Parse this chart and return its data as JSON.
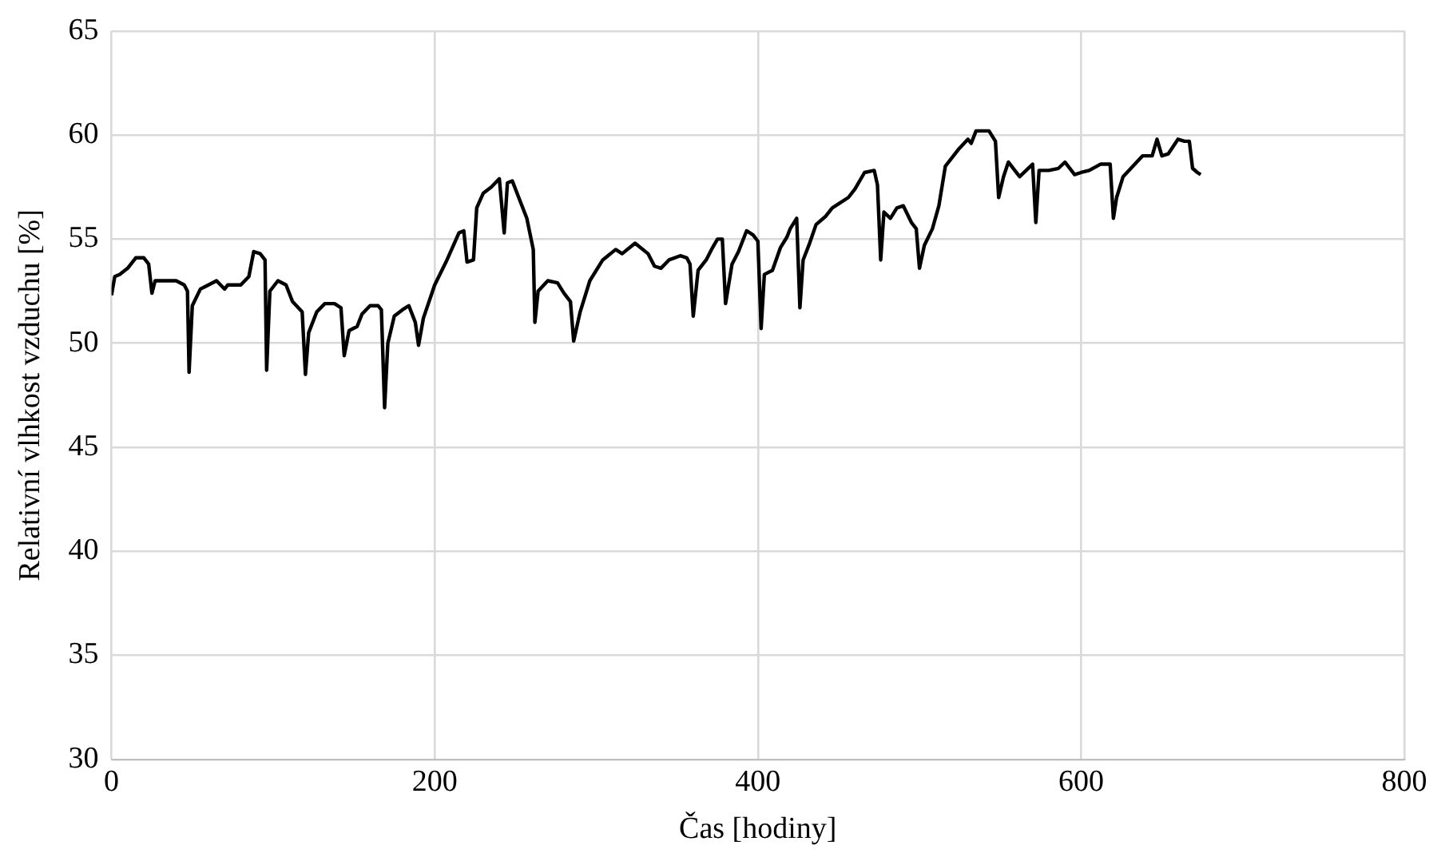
{
  "chart_data": {
    "type": "line",
    "xlabel": "Čas [hodiny]",
    "ylabel": "Relativní vlhkost vzduchu [%]",
    "xlim": [
      0,
      800
    ],
    "xticks": [
      0,
      200,
      400,
      600,
      800
    ],
    "ylim": [
      30,
      65
    ],
    "yticks": [
      30,
      35,
      40,
      45,
      50,
      55,
      60,
      65
    ],
    "grid": true,
    "marker": "none",
    "line_style": "solid",
    "series": [
      {
        "color": "#000000",
        "x": [
          0,
          2,
          5,
          10,
          15,
          20,
          23,
          25,
          27,
          35,
          40,
          45,
          47,
          48,
          50,
          55,
          60,
          65,
          70,
          72,
          80,
          85,
          88,
          92,
          95,
          96,
          98,
          103,
          108,
          112,
          118,
          120,
          122,
          127,
          132,
          138,
          142,
          144,
          147,
          152,
          155,
          160,
          165,
          167,
          169,
          171,
          175,
          180,
          184,
          188,
          190,
          193,
          200,
          207,
          215,
          218,
          220,
          224,
          226,
          230,
          235,
          240,
          243,
          245,
          248,
          252,
          257,
          261,
          262,
          264,
          270,
          276,
          280,
          284,
          286,
          290,
          296,
          304,
          312,
          316,
          324,
          332,
          336,
          340,
          345,
          352,
          356,
          358,
          360,
          363,
          368,
          372,
          375,
          378,
          380,
          384,
          388,
          393,
          397,
          400,
          402,
          404,
          409,
          414,
          418,
          420,
          424,
          426,
          428,
          432,
          436,
          442,
          446,
          450,
          456,
          460,
          466,
          472,
          474,
          476,
          478,
          482,
          486,
          490,
          495,
          498,
          500,
          503,
          508,
          512,
          516,
          524,
          530,
          532,
          535,
          543,
          547,
          549,
          552,
          555,
          562,
          570,
          572,
          574,
          580,
          586,
          590,
          594,
          596,
          600,
          605,
          612,
          618,
          620,
          622,
          626,
          632,
          638,
          644,
          647,
          650,
          654,
          660,
          664,
          667,
          669,
          672,
          674
        ],
        "values": [
          52.3,
          53.2,
          53.3,
          53.6,
          54.1,
          54.1,
          53.8,
          52.4,
          53.0,
          53.0,
          53.0,
          52.8,
          52.5,
          48.6,
          51.8,
          52.6,
          52.8,
          53.0,
          52.6,
          52.8,
          52.8,
          53.2,
          54.4,
          54.3,
          54.0,
          48.7,
          52.5,
          53.0,
          52.8,
          52.0,
          51.5,
          48.5,
          50.5,
          51.5,
          51.9,
          51.9,
          51.7,
          49.4,
          50.6,
          50.8,
          51.4,
          51.8,
          51.8,
          51.6,
          46.9,
          50.0,
          51.3,
          51.6,
          51.8,
          51.0,
          49.9,
          51.2,
          52.8,
          53.9,
          55.3,
          55.4,
          53.9,
          54.0,
          56.5,
          57.2,
          57.5,
          57.9,
          55.3,
          57.7,
          57.8,
          57.0,
          56.0,
          54.5,
          51.0,
          52.5,
          53.0,
          52.9,
          52.4,
          52.0,
          50.1,
          51.5,
          53.0,
          54.0,
          54.5,
          54.3,
          54.8,
          54.3,
          53.7,
          53.6,
          54.0,
          54.2,
          54.1,
          53.8,
          51.3,
          53.5,
          54.0,
          54.6,
          55.0,
          55.0,
          51.9,
          53.8,
          54.4,
          55.4,
          55.2,
          54.9,
          50.7,
          53.3,
          53.5,
          54.6,
          55.1,
          55.5,
          56.0,
          51.7,
          54.0,
          54.8,
          55.7,
          56.1,
          56.5,
          56.7,
          57.0,
          57.4,
          58.2,
          58.3,
          57.6,
          54.0,
          56.3,
          56.0,
          56.5,
          56.6,
          55.8,
          55.5,
          53.6,
          54.7,
          55.5,
          56.6,
          58.5,
          59.3,
          59.8,
          59.6,
          60.2,
          60.2,
          59.7,
          57.0,
          58.0,
          58.7,
          58.0,
          58.6,
          55.8,
          58.3,
          58.3,
          58.4,
          58.7,
          58.3,
          58.1,
          58.2,
          58.3,
          58.6,
          58.6,
          56.0,
          57.0,
          58.0,
          58.5,
          59.0,
          59.0,
          59.8,
          59.0,
          59.1,
          59.8,
          59.7,
          59.7,
          58.4,
          58.2,
          58.1
        ]
      }
    ]
  }
}
